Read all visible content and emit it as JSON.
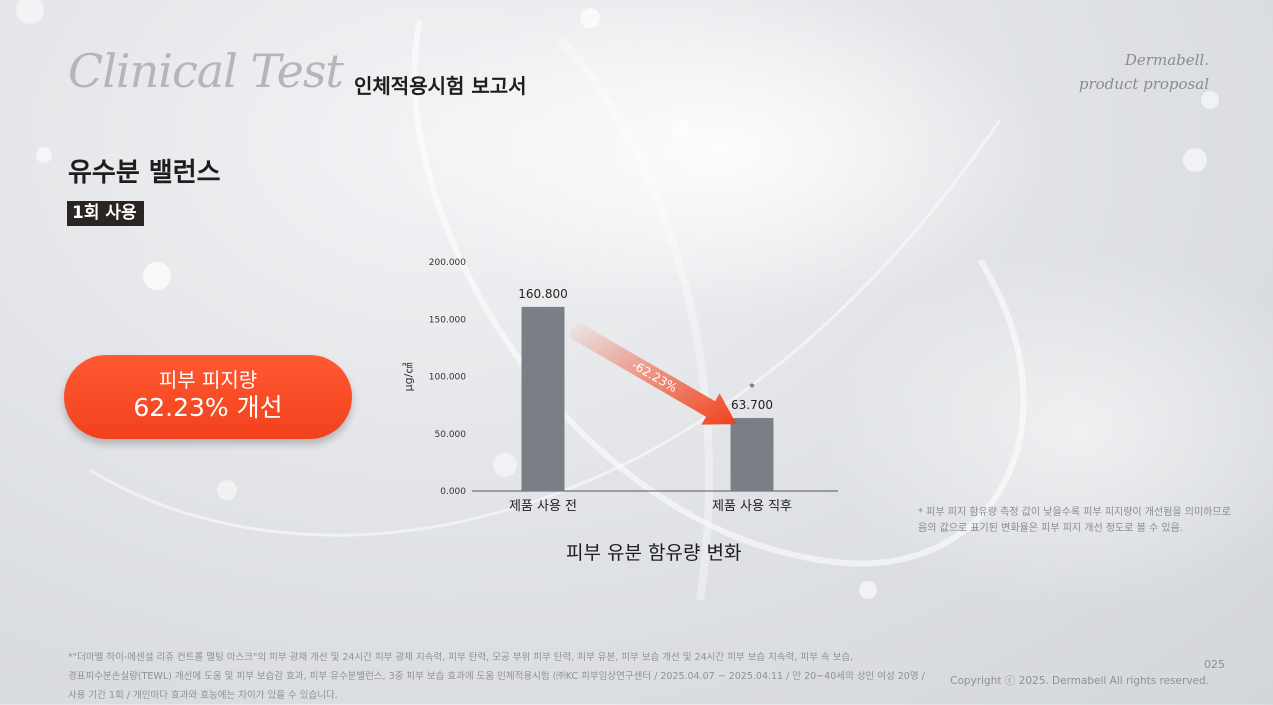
{
  "header": {
    "brand_title": "Clinical Test",
    "subtitle": "인체적용시험 보고서",
    "corner_line1": "Dermabell.",
    "corner_line2": "product proposal"
  },
  "section": {
    "title": "유수분 밸런스",
    "badge": "1회 사용"
  },
  "result": {
    "line1": "피부 피지량",
    "line2": "62.23% 개선",
    "color": "#f2411c"
  },
  "chart_data": {
    "type": "bar",
    "title": "피부 유분 함유량 변화",
    "ylabel": "μg/㎠",
    "xlabel": "",
    "ylim": [
      0,
      200
    ],
    "y_ticks": [
      "200.000",
      "150.000",
      "100.000",
      "50.000",
      "0.000"
    ],
    "y_tick_values": [
      200,
      150,
      100,
      50,
      0
    ],
    "categories": [
      "제품 사용 전",
      "제품 사용 직후"
    ],
    "values": [
      160.8,
      63.7
    ],
    "value_labels": [
      "160.800",
      "63.700"
    ],
    "significance_marker": "*",
    "change_label": "-62.23%",
    "bar_color": "#7b7e84",
    "arrow_color": "#f2411c",
    "grid": false
  },
  "chart_note": {
    "line1": "* 피부 피지 함유량 측정 값이 낮을수록 피부 피지량이 개선됨을 의미하므로",
    "line2": "음의 값으로 표기된 변화율은 피부 피지 개선 정도로 볼 수 있음."
  },
  "footer": {
    "line1": "*\"더마벨 하이-에센셜 리쥬 컨트롤 멜팅 마스크\"의 피부 광채 개선 및 24시간 피부 광채 지속력, 피부 탄력, 모공 부위 피부 탄력, 피부 유분, 피부 보습 개선 및 24시간 피부 보습 지속력, 피부 속 보습,",
    "line2": "경표피수분손실량(TEWL) 개선에 도움 및 피부 보습감 효과, 피부 유수분밸런스, 3중 피부 보습 효과에 도움 인체적용시험 (㈜KC 피부임상연구센터 / 2025.04.07 ~ 2025.04.11 / 만 20~40세의 성인 여성 20명 /",
    "line3": "사용 기간 1회 / 개인마다 효과와 효능에는 차이가 있을 수 있습니다.",
    "page_number": "025",
    "copyright": "Copyright ⓒ 2025. Dermabell All rights reserved."
  }
}
